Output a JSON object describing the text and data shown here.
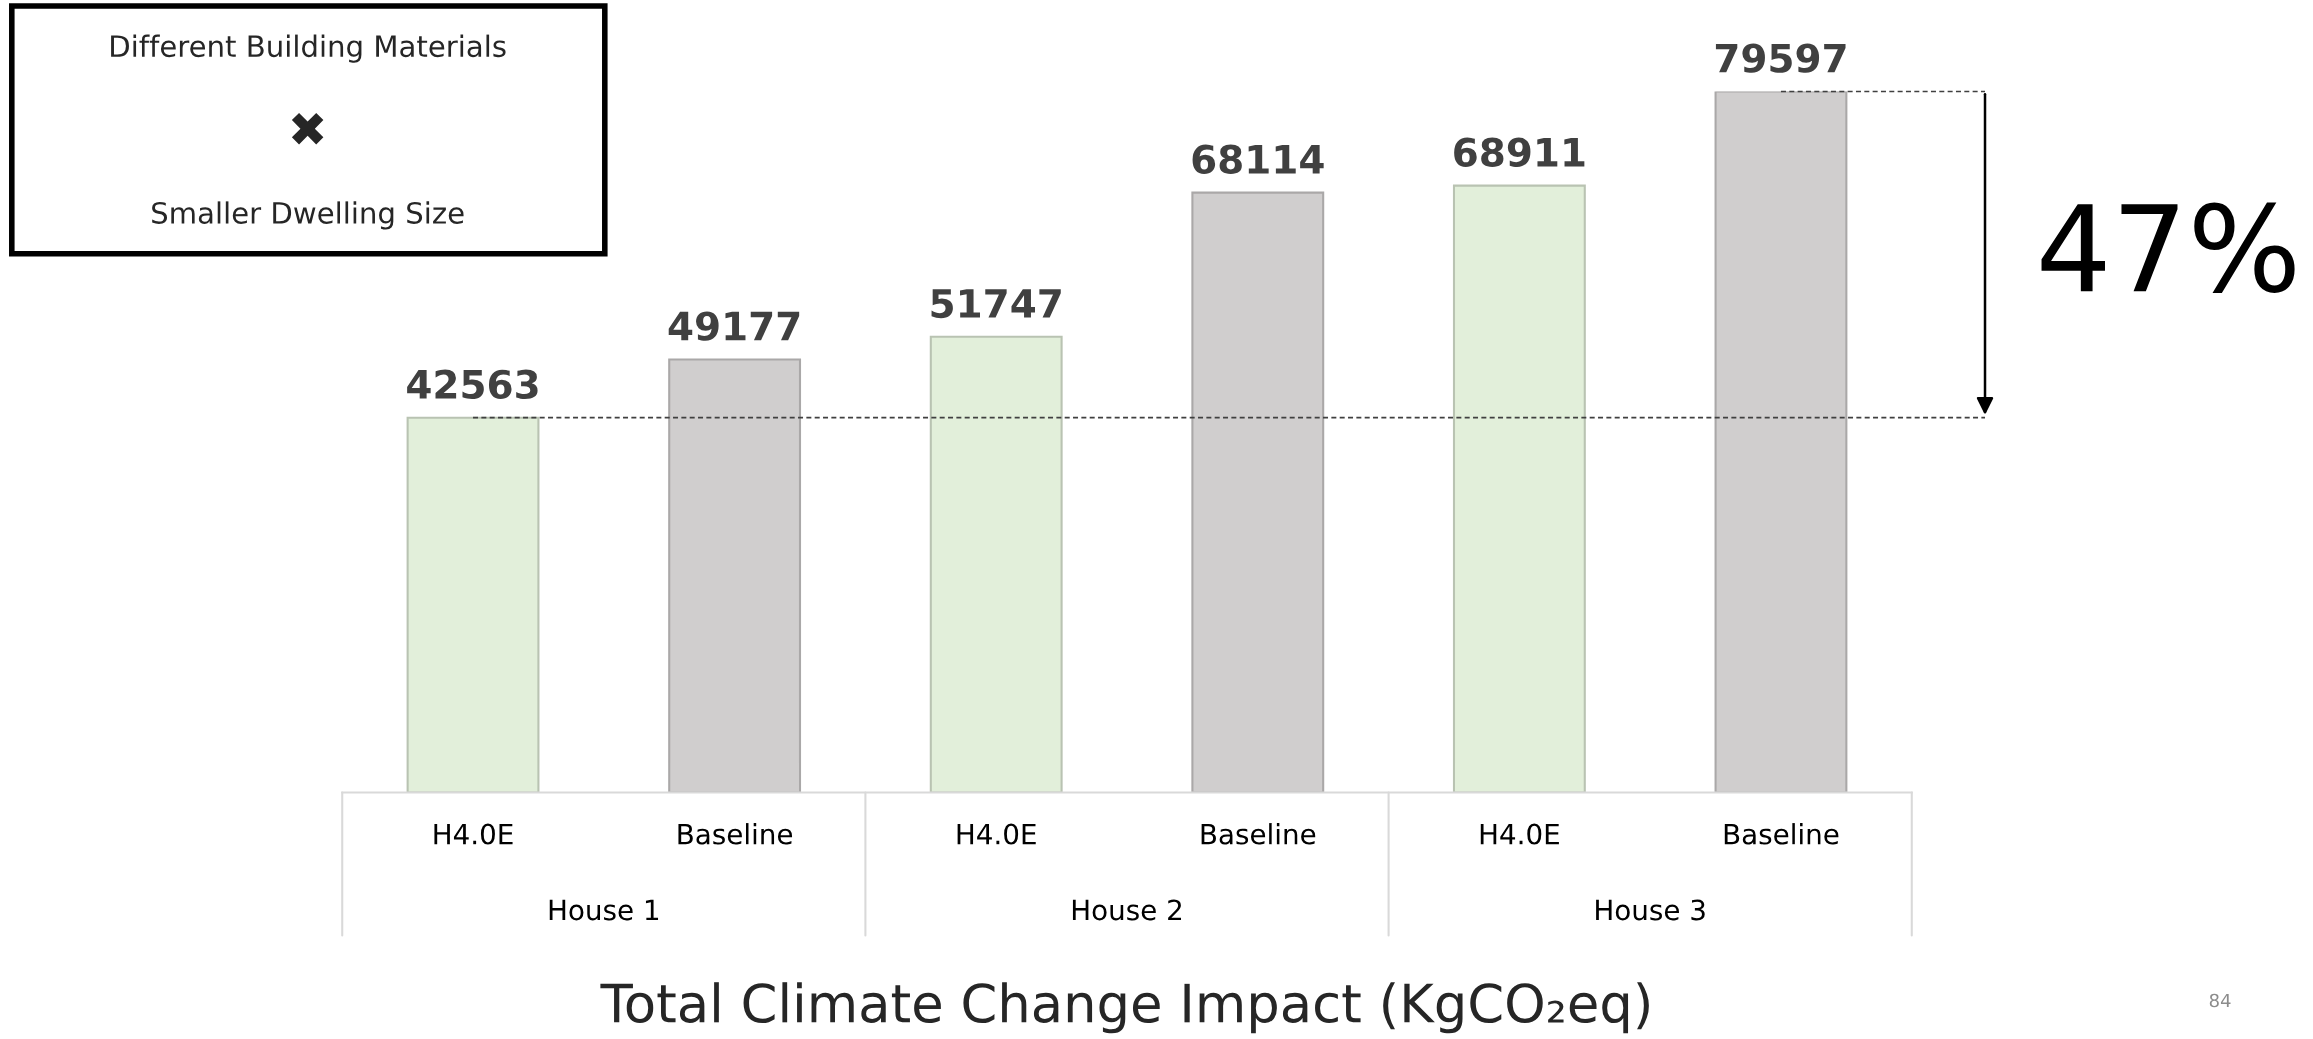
{
  "chart_data": {
    "type": "bar",
    "xlabel": "Total Climate Change Impact (KgCO₂eq)",
    "categories": [
      "H4.0E",
      "Baseline",
      "H4.0E",
      "Baseline",
      "H4.0E",
      "Baseline"
    ],
    "values": [
      42563,
      49177,
      51747,
      68114,
      68911,
      79597
    ],
    "colors": [
      "#e2efda",
      "#d0cece",
      "#e2efda",
      "#d0cece",
      "#e2efda",
      "#d0cece"
    ],
    "data_labels": true,
    "ref_lines": [
      {
        "axis": "y",
        "value": 42563,
        "color": "#404040",
        "line_style": "dashed"
      },
      {
        "axis": "y",
        "value": 79597,
        "color": "#404040",
        "line_style": "dashed"
      }
    ],
    "annotations": [
      "House 1",
      "House 2",
      "House 3",
      "Different Building Materials",
      "✖",
      "Smaller Dwelling Size",
      "47%",
      "84"
    ],
    "grid": false
  }
}
